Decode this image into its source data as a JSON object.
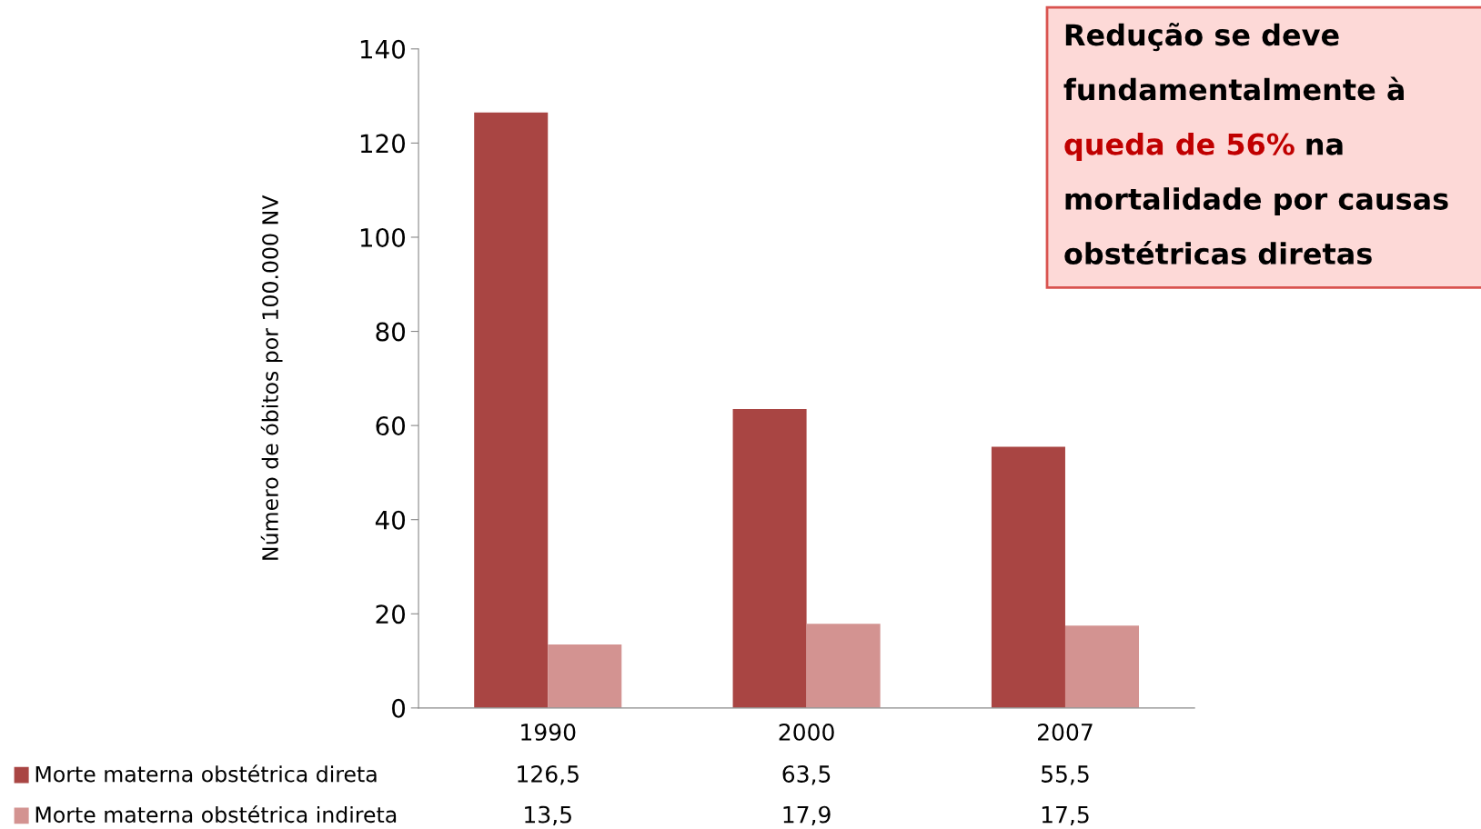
{
  "chart_data": {
    "type": "bar",
    "ylabel": "Número de óbitos por 100.000 NV",
    "categories": [
      "1990",
      "2000",
      "2007"
    ],
    "series": [
      {
        "name": "Morte materna obstétrica direta",
        "color": "#a94543",
        "values": [
          126.5,
          63.5,
          55.5
        ],
        "value_labels": [
          "126,5",
          "63,5",
          "55,5"
        ]
      },
      {
        "name": "Morte materna obstétrica indireta",
        "color": "#d39391",
        "values": [
          13.5,
          17.9,
          17.5
        ],
        "value_labels": [
          "13,5",
          "17,9",
          "17,5"
        ]
      }
    ],
    "ylim": [
      0,
      140
    ],
    "yticks": [
      0,
      20,
      40,
      60,
      80,
      100,
      120,
      140
    ],
    "grid": false,
    "legend": "bottom left",
    "annotations": [
      "Redução se deve\nfundamentalmente à",
      "queda de 56%",
      "na\nmortalidade por causas\nobstétricas diretas"
    ]
  }
}
